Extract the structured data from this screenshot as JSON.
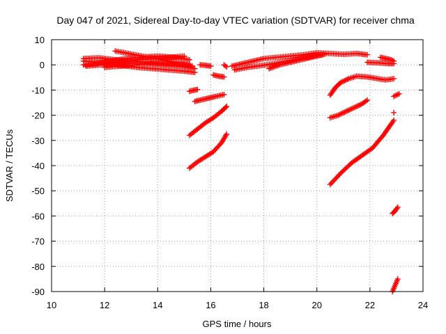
{
  "chart_data": {
    "type": "scatter",
    "title": "Day 047 of 2021, Sidereal Day-to-day VTEC variation (SDTVAR) for receiver chma",
    "xlabel": "GPS time / hours",
    "ylabel": "SDTVAR / TECUs",
    "xlim": [
      10,
      24
    ],
    "ylim": [
      -90,
      10
    ],
    "xticks": [
      10,
      12,
      14,
      16,
      18,
      20,
      22,
      24
    ],
    "yticks": [
      10,
      0,
      -10,
      -20,
      -30,
      -40,
      -50,
      -60,
      -70,
      -80,
      -90
    ],
    "grid": true,
    "marker": "+",
    "series_color": "#ff0000",
    "series": [
      {
        "x": [
          11.2,
          11.8,
          12.4,
          13.0,
          13.6,
          14.2,
          14.8,
          15.2
        ],
        "y": [
          2.5,
          2.8,
          2.0,
          1.5,
          1.0,
          0.5,
          0.2,
          0.0
        ]
      },
      {
        "x": [
          11.2,
          11.8,
          12.5,
          13.2,
          13.8,
          14.4,
          15.0,
          15.4
        ],
        "y": [
          1.5,
          1.0,
          0.0,
          -1.0,
          -1.5,
          -2.0,
          -2.5,
          -3.0
        ]
      },
      {
        "x": [
          11.2,
          11.7,
          12.2,
          12.8,
          13.4,
          14.0,
          14.6,
          15.2
        ],
        "y": [
          0.0,
          0.5,
          1.5,
          2.5,
          3.0,
          3.5,
          3.0,
          2.0
        ]
      },
      {
        "x": [
          12.4,
          12.9,
          13.4,
          13.9,
          14.4,
          14.9,
          15.3
        ],
        "y": [
          5.5,
          4.5,
          3.5,
          2.5,
          1.5,
          0.5,
          -0.5
        ]
      },
      {
        "x": [
          11.3,
          11.9,
          12.6,
          13.3,
          13.9,
          14.5,
          15.0
        ],
        "y": [
          -0.5,
          0.0,
          1.0,
          2.0,
          2.5,
          3.0,
          3.5
        ]
      },
      {
        "x": [
          12.0,
          12.6,
          13.2,
          13.8,
          14.4,
          15.0,
          15.4
        ],
        "y": [
          -1.0,
          -0.5,
          0.0,
          0.5,
          0.0,
          -0.8,
          -1.5
        ]
      },
      {
        "x": [
          15.6,
          15.8,
          16.0
        ],
        "y": [
          0.0,
          -0.2,
          -0.5
        ]
      },
      {
        "x": [
          15.2,
          15.3,
          15.4,
          15.5
        ],
        "y": [
          -10.5,
          -10.2,
          -10.0,
          -9.8
        ]
      },
      {
        "x": [
          15.4,
          15.6,
          15.8,
          16.0,
          16.2,
          16.5
        ],
        "y": [
          -14.5,
          -14.0,
          -13.5,
          -13.0,
          -12.5,
          -11.8
        ]
      },
      {
        "x": [
          15.2,
          15.5,
          15.8,
          16.1,
          16.4,
          16.6
        ],
        "y": [
          -28.0,
          -25.5,
          -23.0,
          -21.0,
          -18.5,
          -16.5
        ]
      },
      {
        "x": [
          15.2,
          15.5,
          15.8,
          16.1,
          16.4,
          16.6
        ],
        "y": [
          -41.0,
          -38.5,
          -36.5,
          -34.5,
          -31.0,
          -27.5
        ]
      },
      {
        "x": [
          16.1,
          16.3,
          16.5
        ],
        "y": [
          -4.0,
          -4.5,
          -4.8
        ]
      },
      {
        "x": [
          16.5,
          16.6
        ],
        "y": [
          0.0,
          -0.8
        ]
      },
      {
        "x": [
          16.8,
          17.2,
          17.6,
          18.0,
          18.5,
          19.0,
          19.5,
          20.0,
          20.5,
          21.0,
          21.5,
          21.9
        ],
        "y": [
          -0.5,
          0.5,
          1.5,
          2.5,
          3.0,
          3.5,
          4.0,
          4.8,
          4.5,
          4.2,
          4.5,
          4.0
        ]
      },
      {
        "x": [
          16.9,
          17.4,
          17.9,
          18.4,
          18.9,
          19.4,
          19.9,
          20.3
        ],
        "y": [
          -2.0,
          -1.0,
          -0.3,
          0.5,
          1.5,
          2.5,
          3.5,
          4.2
        ]
      },
      {
        "x": [
          18.2,
          18.6,
          19.0,
          19.4,
          19.8,
          20.2
        ],
        "y": [
          -1.5,
          0.0,
          1.0,
          2.0,
          3.0,
          4.0
        ]
      },
      {
        "x": [
          21.9,
          22.3,
          22.7,
          22.9
        ],
        "y": [
          1.0,
          0.8,
          0.5,
          0.5
        ]
      },
      {
        "x": [
          22.4,
          22.6,
          22.8,
          22.9
        ],
        "y": [
          3.0,
          2.5,
          2.0,
          1.5
        ]
      },
      {
        "x": [
          20.5,
          20.7,
          20.9,
          21.2,
          21.5,
          21.9,
          22.3,
          22.6,
          22.9
        ],
        "y": [
          -12.0,
          -9.0,
          -7.0,
          -5.5,
          -4.5,
          -4.8,
          -5.5,
          -6.0,
          -5.5
        ]
      },
      {
        "x": [
          20.5,
          20.8,
          21.1,
          21.4,
          21.7,
          21.9
        ],
        "y": [
          -21.0,
          -20.0,
          -18.5,
          -17.0,
          -15.5,
          -14.0
        ]
      },
      {
        "x": [
          20.5,
          20.9,
          21.3,
          21.7,
          22.1,
          22.5,
          22.9
        ],
        "y": [
          -47.5,
          -43.0,
          -39.0,
          -36.0,
          -33.0,
          -28.0,
          -22.0
        ]
      },
      {
        "x": [
          22.9
        ],
        "y": [
          -19.0
        ]
      },
      {
        "x": [
          22.9,
          23.0,
          23.1
        ],
        "y": [
          -12.5,
          -12.0,
          -11.5
        ]
      },
      {
        "x": [
          22.85,
          22.95,
          23.05
        ],
        "y": [
          -59.0,
          -58.0,
          -56.5
        ]
      },
      {
        "x": [
          22.85,
          22.95,
          23.05
        ],
        "y": [
          -90.0,
          -87.5,
          -85.0
        ]
      }
    ]
  }
}
